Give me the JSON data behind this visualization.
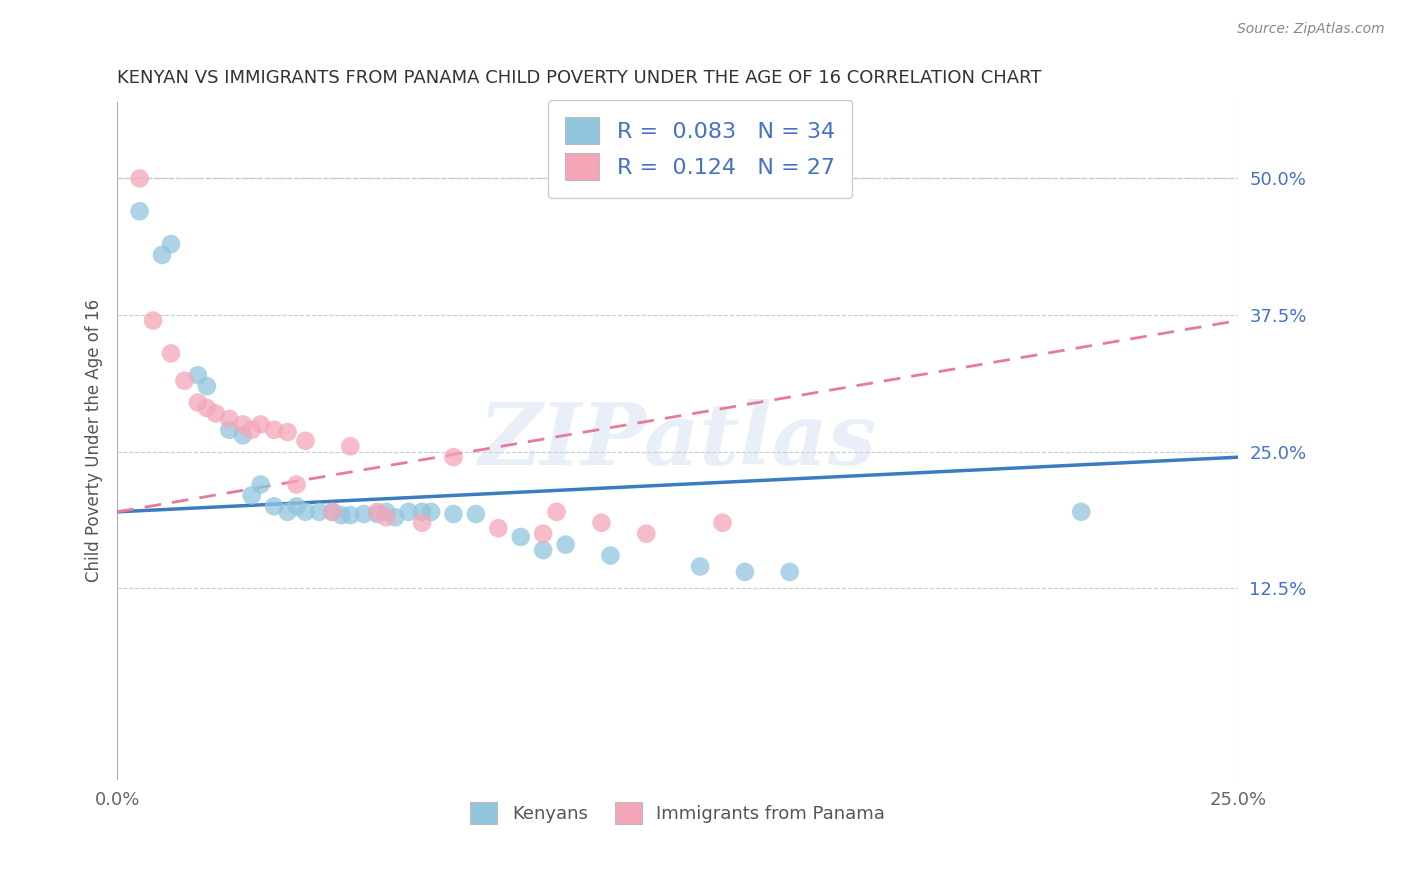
{
  "title": "KENYAN VS IMMIGRANTS FROM PANAMA CHILD POVERTY UNDER THE AGE OF 16 CORRELATION CHART",
  "source": "Source: ZipAtlas.com",
  "ylabel": "Child Poverty Under the Age of 16",
  "xlim": [
    0.0,
    0.25
  ],
  "ylim": [
    -0.05,
    0.57
  ],
  "xtick_labels": [
    "0.0%",
    "25.0%"
  ],
  "xtick_positions": [
    0.0,
    0.25
  ],
  "ytick_labels": [
    "12.5%",
    "25.0%",
    "37.5%",
    "50.0%"
  ],
  "ytick_positions": [
    0.125,
    0.25,
    0.375,
    0.5
  ],
  "dashed_line_y": 0.5,
  "legend_r1": "R =  0.083",
  "legend_n1": "N = 34",
  "legend_r2": "R =  0.124",
  "legend_n2": "N = 27",
  "blue_color": "#92c5de",
  "pink_color": "#f4a6b8",
  "watermark_text": "ZIPatlas",
  "kenyan_scatter": [
    [
      0.005,
      0.47
    ],
    [
      0.01,
      0.43
    ],
    [
      0.012,
      0.44
    ],
    [
      0.018,
      0.32
    ],
    [
      0.02,
      0.31
    ],
    [
      0.025,
      0.27
    ],
    [
      0.028,
      0.265
    ],
    [
      0.03,
      0.21
    ],
    [
      0.032,
      0.22
    ],
    [
      0.035,
      0.2
    ],
    [
      0.038,
      0.195
    ],
    [
      0.04,
      0.2
    ],
    [
      0.042,
      0.195
    ],
    [
      0.045,
      0.195
    ],
    [
      0.048,
      0.195
    ],
    [
      0.05,
      0.192
    ],
    [
      0.052,
      0.192
    ],
    [
      0.055,
      0.193
    ],
    [
      0.058,
      0.193
    ],
    [
      0.06,
      0.195
    ],
    [
      0.062,
      0.19
    ],
    [
      0.065,
      0.195
    ],
    [
      0.068,
      0.195
    ],
    [
      0.07,
      0.195
    ],
    [
      0.075,
      0.193
    ],
    [
      0.08,
      0.193
    ],
    [
      0.09,
      0.172
    ],
    [
      0.095,
      0.16
    ],
    [
      0.1,
      0.165
    ],
    [
      0.11,
      0.155
    ],
    [
      0.13,
      0.145
    ],
    [
      0.14,
      0.14
    ],
    [
      0.15,
      0.14
    ],
    [
      0.215,
      0.195
    ]
  ],
  "panama_scatter": [
    [
      0.005,
      0.5
    ],
    [
      0.008,
      0.37
    ],
    [
      0.012,
      0.34
    ],
    [
      0.015,
      0.315
    ],
    [
      0.018,
      0.295
    ],
    [
      0.02,
      0.29
    ],
    [
      0.022,
      0.285
    ],
    [
      0.025,
      0.28
    ],
    [
      0.028,
      0.275
    ],
    [
      0.03,
      0.27
    ],
    [
      0.032,
      0.275
    ],
    [
      0.035,
      0.27
    ],
    [
      0.038,
      0.268
    ],
    [
      0.04,
      0.22
    ],
    [
      0.042,
      0.26
    ],
    [
      0.048,
      0.195
    ],
    [
      0.052,
      0.255
    ],
    [
      0.058,
      0.195
    ],
    [
      0.06,
      0.19
    ],
    [
      0.068,
      0.185
    ],
    [
      0.075,
      0.245
    ],
    [
      0.085,
      0.18
    ],
    [
      0.095,
      0.175
    ],
    [
      0.098,
      0.195
    ],
    [
      0.108,
      0.185
    ],
    [
      0.118,
      0.175
    ],
    [
      0.135,
      0.185
    ]
  ],
  "blue_trend_x": [
    0.0,
    0.25
  ],
  "blue_trend_y": [
    0.195,
    0.245
  ],
  "pink_trend_x": [
    0.0,
    0.25
  ],
  "pink_trend_y": [
    0.195,
    0.37
  ]
}
